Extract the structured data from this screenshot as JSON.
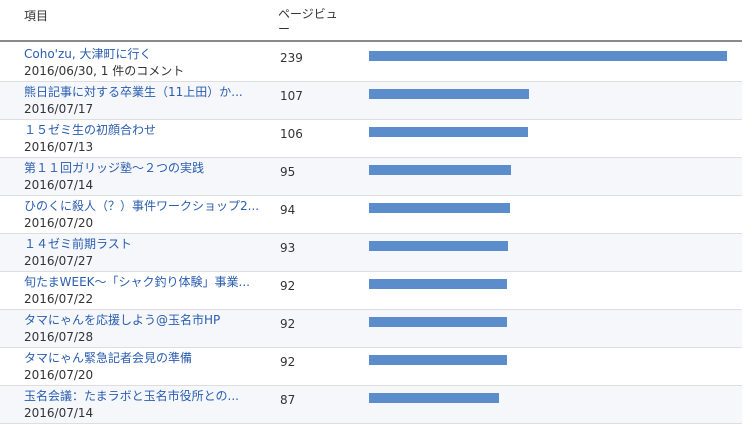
{
  "header": {
    "item_label": "項目",
    "pageview_label": "ページビュー"
  },
  "rows": [
    {
      "title": "Coho'zu, 大津町に行く",
      "sub": "2016/06/30, 1 件のコメント",
      "count": "239",
      "value": 239
    },
    {
      "title": "熊日記事に対する卒業生（11上田）か...",
      "sub": "2016/07/17",
      "count": "107",
      "value": 107
    },
    {
      "title": "１５ゼミ生の初顔合わせ",
      "sub": "2016/07/13",
      "count": "106",
      "value": 106
    },
    {
      "title": "第１１回ガリッジ塾～２つの実践",
      "sub": "2016/07/14",
      "count": "95",
      "value": 95
    },
    {
      "title": "ひのくに殺人（？）事件ワークショップ2...",
      "sub": "2016/07/20",
      "count": "94",
      "value": 94
    },
    {
      "title": "１４ゼミ前期ラスト",
      "sub": "2016/07/27",
      "count": "93",
      "value": 93
    },
    {
      "title": "旬たまWEEK～「シャク釣り体験」事業...",
      "sub": "2016/07/22",
      "count": "92",
      "value": 92
    },
    {
      "title": "タマにゃんを応援しよう@玉名市HP",
      "sub": "2016/07/28",
      "count": "92",
      "value": 92
    },
    {
      "title": "タマにゃん緊急記者会見の準備",
      "sub": "2016/07/20",
      "count": "92",
      "value": 92
    },
    {
      "title": "玉名会議：たまラボと玉名市役所との...",
      "sub": "2016/07/14",
      "count": "87",
      "value": 87
    }
  ],
  "colors": {
    "bar": "#5b8ccc",
    "link": "#2a5db0",
    "row_alt": "#f5f7fb"
  }
}
